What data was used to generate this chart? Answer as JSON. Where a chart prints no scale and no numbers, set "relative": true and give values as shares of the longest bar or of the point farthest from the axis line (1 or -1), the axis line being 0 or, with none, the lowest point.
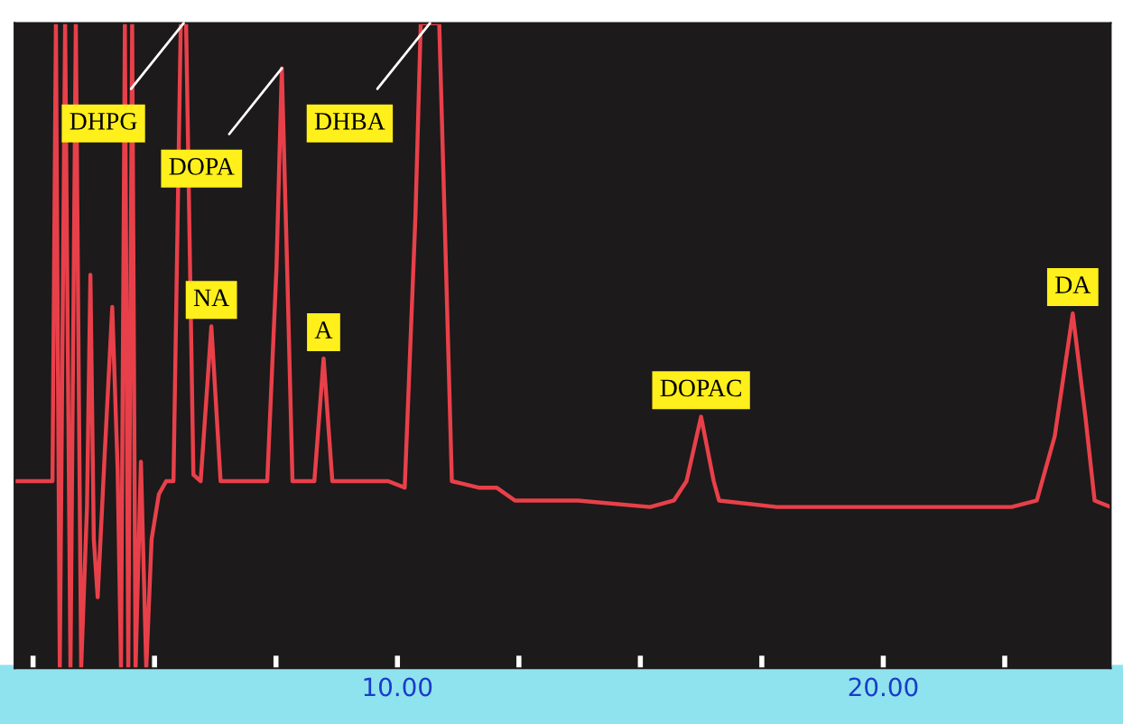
{
  "chart_data": {
    "type": "line",
    "relative": true,
    "tick_labels": "x",
    "grid": false,
    "xlim": [
      2.12,
      24.68
    ],
    "xticks": [
      {
        "value": 2.5,
        "label": null
      },
      {
        "value": 5,
        "label": null
      },
      {
        "value": 7.5,
        "label": null
      },
      {
        "value": 10,
        "label": "10.00"
      },
      {
        "value": 12.5,
        "label": null
      },
      {
        "value": 15,
        "label": null
      },
      {
        "value": 17.5,
        "label": null
      },
      {
        "value": 20,
        "label": "20.00"
      },
      {
        "value": 22.5,
        "label": null
      }
    ],
    "series": [
      {
        "color": "#e8404a",
        "x": [
          2.12,
          2.75,
          2.9,
          2.97,
          3.05,
          3.16,
          3.27,
          3.38,
          3.49,
          3.61,
          3.68,
          3.75,
          3.83,
          3.98,
          4.13,
          4.24,
          4.31,
          4.39,
          4.46,
          4.54,
          4.61,
          4.72,
          4.83,
          4.94,
          5.09,
          5.24,
          5.39,
          5.54,
          5.65,
          5.8,
          5.95,
          6.17,
          6.36,
          6.65,
          7.03,
          7.32,
          7.51,
          7.62,
          7.73,
          7.84,
          8.07,
          8.29,
          8.48,
          8.66,
          9.07,
          9.81,
          10.15,
          10.37,
          10.48,
          10.86,
          11.0,
          11.12,
          11.67,
          12.04,
          12.42,
          13.72,
          15.2,
          15.69,
          15.95,
          16.25,
          16.51,
          16.62,
          17.81,
          19.29,
          21.15,
          22.64,
          23.16,
          23.53,
          23.9,
          24.16,
          24.35,
          24.68
        ],
        "values": [
          0.29,
          0.29,
          0.29,
          1,
          0,
          1,
          0,
          1,
          0,
          0.25,
          0.61,
          0.2,
          0.11,
          0.34,
          0.56,
          0.31,
          0,
          1,
          0,
          1,
          0,
          0.32,
          0,
          0.2,
          0.27,
          0.29,
          0.29,
          1,
          1,
          0.3,
          0.29,
          0.53,
          0.29,
          0.29,
          0.29,
          0.29,
          0.62,
          0.93,
          0.62,
          0.29,
          0.29,
          0.29,
          0.48,
          0.29,
          0.29,
          0.29,
          0.28,
          0.7,
          1,
          1,
          0.62,
          0.29,
          0.28,
          0.28,
          0.26,
          0.26,
          0.25,
          0.26,
          0.29,
          0.39,
          0.29,
          0.26,
          0.25,
          0.25,
          0.25,
          0.25,
          0.26,
          0.36,
          0.55,
          0.39,
          0.26,
          0.25
        ]
      }
    ],
    "annotations": [
      {
        "text": "DHPG",
        "x": 5.6,
        "y": 1
      },
      {
        "text": "DOPA",
        "x": 7.62,
        "y": 0.93
      },
      {
        "text": "NA",
        "x": 6.17,
        "y": 0.53
      },
      {
        "text": "A",
        "x": 8.48,
        "y": 0.48
      },
      {
        "text": "DHBA",
        "x": 10.67,
        "y": 1
      },
      {
        "text": "DOPAC",
        "x": 16.25,
        "y": 0.39
      },
      {
        "text": "DA",
        "x": 23.9,
        "y": 0.55
      }
    ]
  }
}
